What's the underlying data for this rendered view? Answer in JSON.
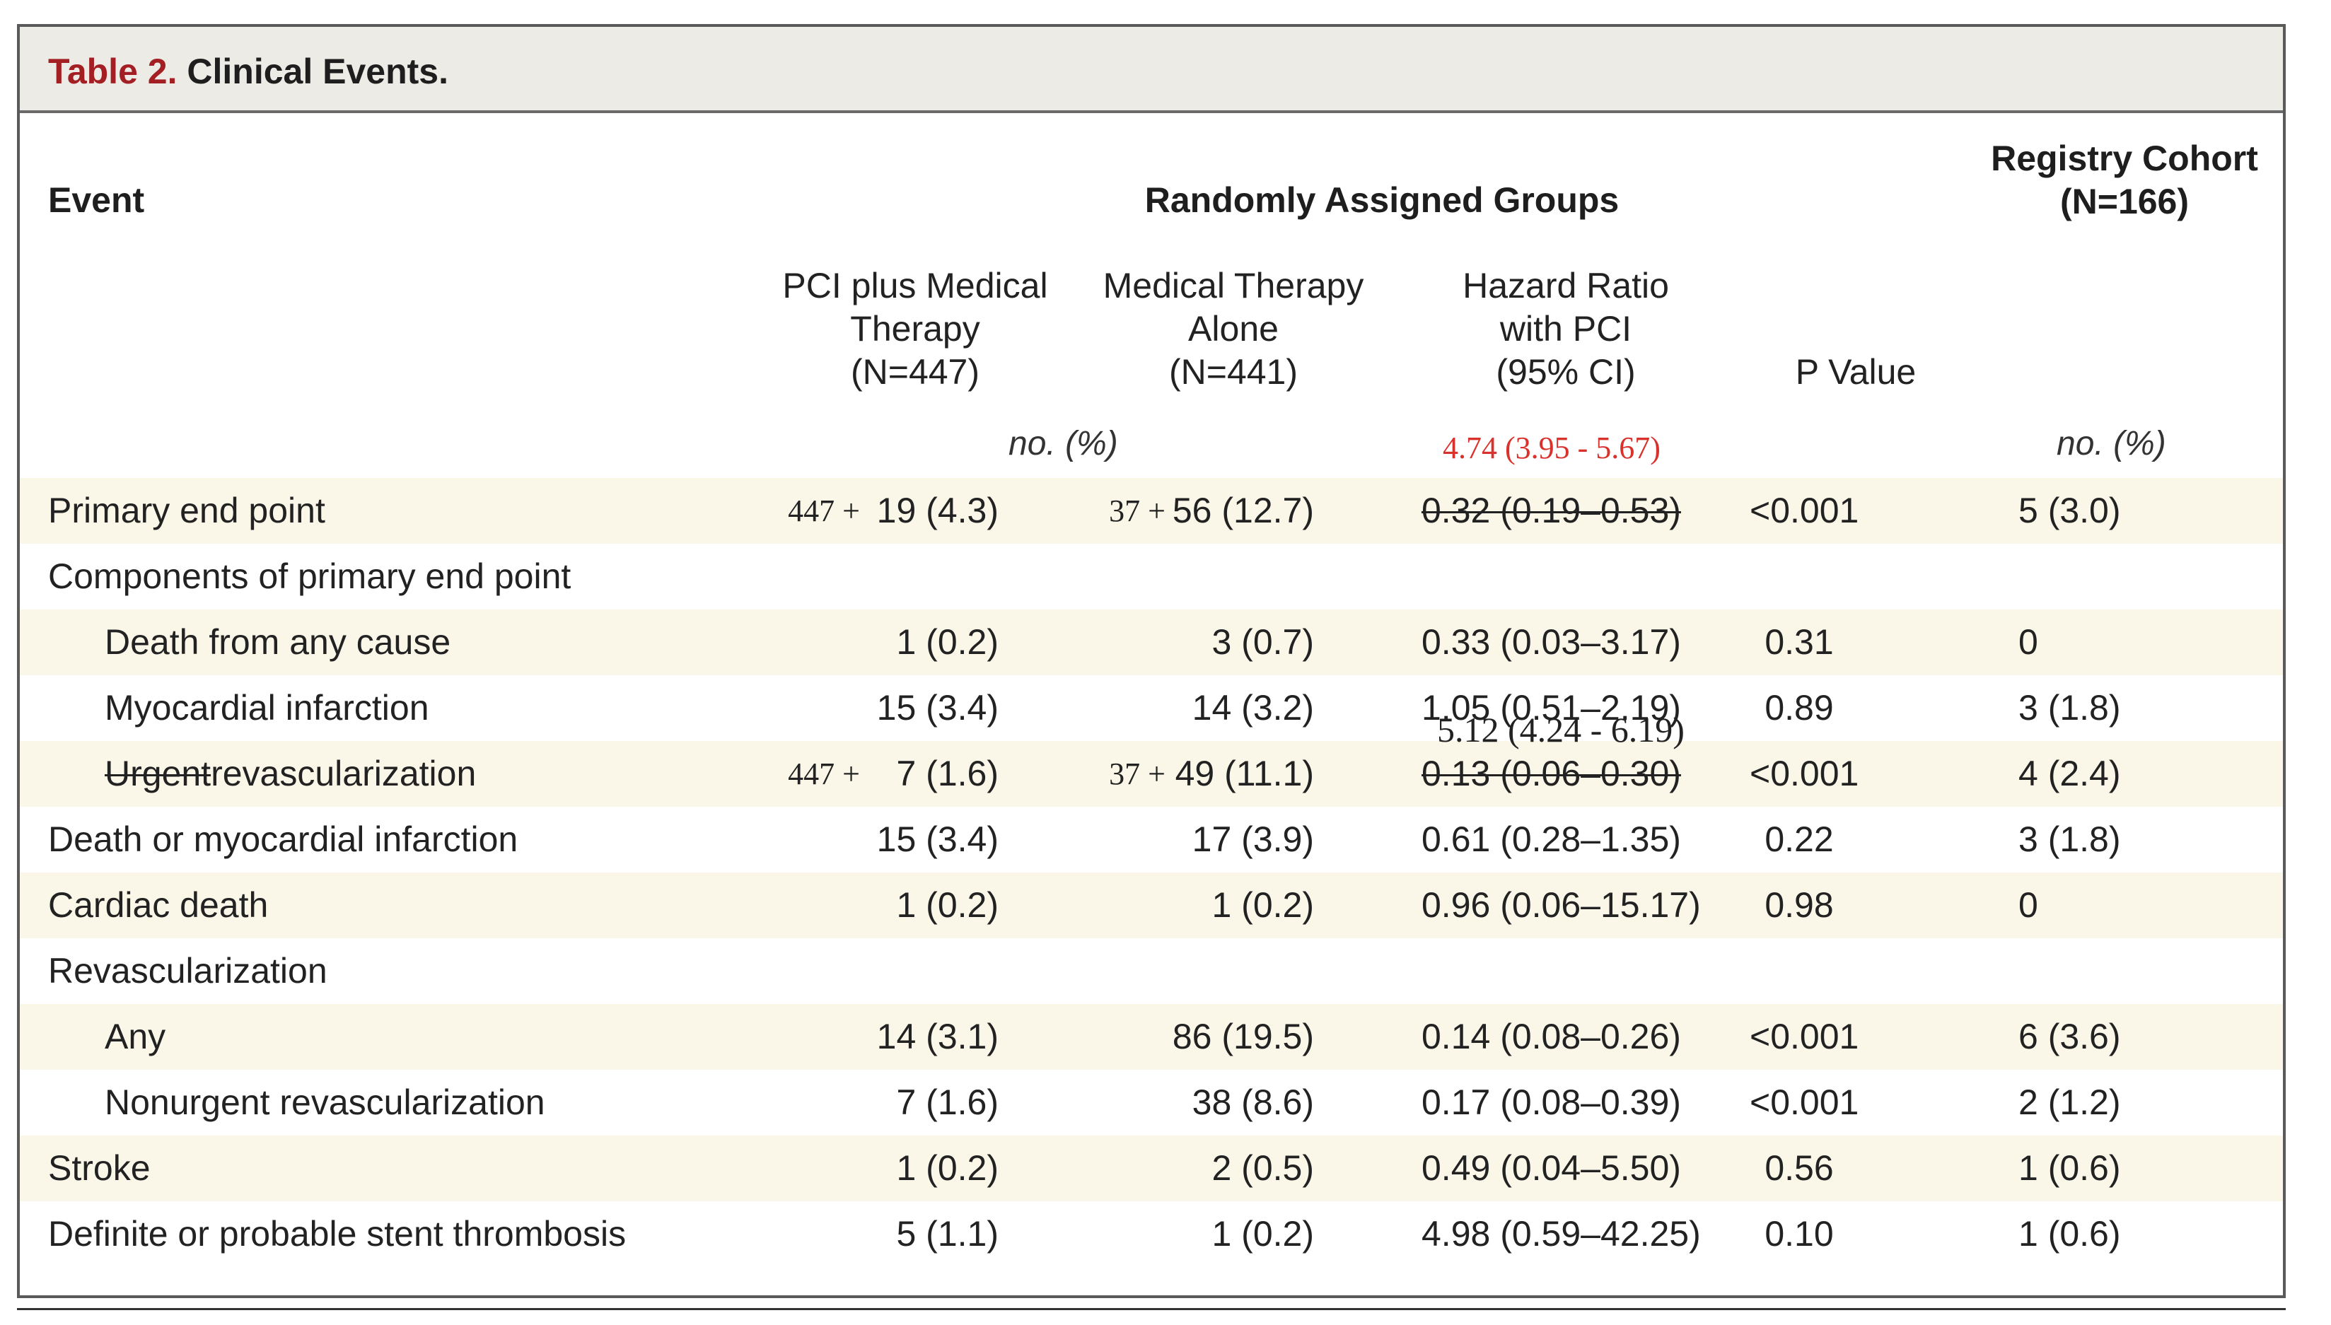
{
  "title": {
    "label": "Table 2.",
    "caption": "Clinical Events."
  },
  "header": {
    "event": "Event",
    "randomly_assigned": "Randomly Assigned Groups",
    "registry_line1": "Registry Cohort",
    "registry_line2": "(N=166)",
    "pci_line1": "PCI plus Medical",
    "pci_line2": "Therapy",
    "pci_line3": "(N=447)",
    "med_line1": "Medical Therapy",
    "med_line2": "Alone",
    "med_line3": "(N=441)",
    "hr_line1": "Hazard Ratio",
    "hr_line2": "with PCI",
    "hr_line3": "(95% CI)",
    "pvalue": "P Value",
    "unit_randomized": "no. (%)",
    "unit_registry": "no. (%)",
    "hr_handwritten": "4.74 (3.95 - 5.67)"
  },
  "rows": [
    {
      "label": "Primary end point",
      "indent": false,
      "shade": true,
      "pci": "19 (4.3)",
      "med": "56 (12.7)",
      "hr": "0.32 (0.19–0.53)",
      "p": "<0.001",
      "reg": "5 (3.0)",
      "pci_add": "447 +",
      "med_add": "37 +",
      "hr_strike": true
    },
    {
      "label": "Components of primary end point",
      "indent": false,
      "shade": false,
      "pci": "",
      "med": "",
      "hr": "",
      "p": "",
      "reg": ""
    },
    {
      "label": "Death from any cause",
      "indent": true,
      "shade": true,
      "pci": "1 (0.2)",
      "med": "3 (0.7)",
      "hr": "0.33 (0.03–3.17)",
      "p": "0.31",
      "reg": "0"
    },
    {
      "label": "Myocardial infarction",
      "indent": true,
      "shade": false,
      "pci": "15 (3.4)",
      "med": "14 (3.2)",
      "hr": "1.05 (0.51–2.19)",
      "p": "0.89",
      "reg": "3 (1.8)"
    },
    {
      "label_struck": "Urgent",
      "label": "revascularization",
      "indent": true,
      "shade": true,
      "pci": "7 (1.6)",
      "med": "49 (11.1)",
      "hr": "0.13 (0.06–0.30)",
      "p": "<0.001",
      "reg": "4 (2.4)",
      "pci_add": "447 +",
      "med_add": "37 +",
      "hr_strike": true,
      "hr_note": "5.12 (4.24 - 6.19)"
    },
    {
      "label": "Death or myocardial infarction",
      "indent": false,
      "shade": false,
      "pci": "15 (3.4)",
      "med": "17 (3.9)",
      "hr": "0.61 (0.28–1.35)",
      "p": "0.22",
      "reg": "3 (1.8)"
    },
    {
      "label": "Cardiac death",
      "indent": false,
      "shade": true,
      "pci": "1 (0.2)",
      "med": "1 (0.2)",
      "hr": "0.96 (0.06–15.17)",
      "p": "0.98",
      "reg": "0"
    },
    {
      "label": "Revascularization",
      "indent": false,
      "shade": false,
      "pci": "",
      "med": "",
      "hr": "",
      "p": "",
      "reg": ""
    },
    {
      "label": "Any",
      "indent": true,
      "shade": true,
      "pci": "14 (3.1)",
      "med": "86 (19.5)",
      "hr": "0.14 (0.08–0.26)",
      "p": "<0.001",
      "reg": "6 (3.6)"
    },
    {
      "label": "Nonurgent revascularization",
      "indent": true,
      "shade": false,
      "pci": "7 (1.6)",
      "med": "38 (8.6)",
      "hr": "0.17 (0.08–0.39)",
      "p": "<0.001",
      "reg": "2 (1.2)"
    },
    {
      "label": "Stroke",
      "indent": false,
      "shade": true,
      "pci": "1 (0.2)",
      "med": "2 (0.5)",
      "hr": "0.49 (0.04–5.50)",
      "p": "0.56",
      "reg": "1 (0.6)"
    },
    {
      "label": "Definite or probable stent thrombosis",
      "indent": false,
      "shade": false,
      "pci": "5 (1.1)",
      "med": "1 (0.2)",
      "hr": "4.98 (0.59–42.25)",
      "p": "0.10",
      "reg": "1 (0.6)"
    }
  ],
  "colors": {
    "title_label": "#a31f24",
    "handwritten": "#d9322c",
    "row_shade": "#fbf7e8",
    "title_bar": "#ecebe6"
  }
}
